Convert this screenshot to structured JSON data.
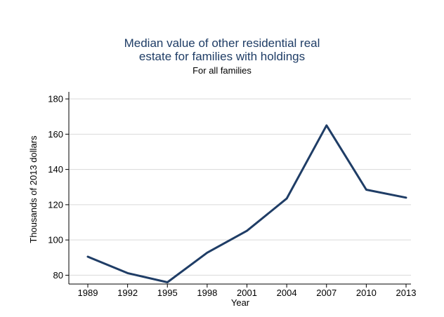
{
  "chart_data": {
    "type": "line",
    "title_lines": [
      "Median value of other residential real",
      "estate for families with holdings"
    ],
    "subtitle": "For all families",
    "xlabel": "Year",
    "ylabel": "Thousands of 2013 dollars",
    "categories": [
      "1989",
      "1992",
      "1995",
      "1998",
      "2001",
      "2004",
      "2007",
      "2010",
      "2013"
    ],
    "series": [
      {
        "values": [
          90.5,
          81.2,
          76.0,
          92.8,
          105.2,
          123.5,
          165.0,
          128.5,
          124.0
        ]
      }
    ],
    "yticks": [
      80,
      100,
      120,
      140,
      160,
      180
    ],
    "ylim": [
      75,
      184
    ],
    "grid": true,
    "line_color": "#1f3d66"
  }
}
